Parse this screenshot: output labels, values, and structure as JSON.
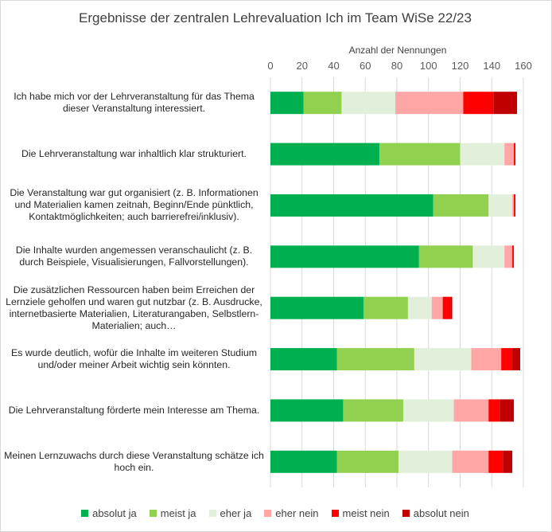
{
  "chart_data": {
    "type": "bar",
    "orientation": "horizontal",
    "stacked": true,
    "title": "Ergebnisse der zentralen Lehrevaluation Ich im Team WiSe 22/23",
    "xlabel": "Anzahl der Nennungen",
    "xlim": [
      0,
      160
    ],
    "xticks": [
      0,
      20,
      40,
      60,
      80,
      100,
      120,
      140,
      160
    ],
    "grid": true,
    "legend_position": "bottom",
    "categories": [
      "Ich habe mich vor der Lehrveranstaltung für das Thema dieser Veranstaltung interessiert.",
      "Die Lehrveranstaltung war inhaltlich klar strukturiert.",
      "Die Veranstaltung war gut organisiert (z. B. Informationen und Materialien kamen zeitnah, Beginn/Ende pünktlich, Kontaktmöglichkeiten; auch barrierefrei/inklusiv).",
      "Die Inhalte wurden angemessen veranschaulicht (z. B. durch Beispiele, Visualisierungen, Fallvorstellungen).",
      "Die zusätzlichen Ressourcen haben beim Erreichen der Lernziele geholfen und waren gut nutzbar (z. B. Ausdrucke, internetbasierte Materialien, Literaturangaben, Selbstlern-Materialien; auch…",
      "Es wurde deutlich, wofür die Inhalte im weiteren Studium und/oder meiner Arbeit wichtig sein könnten.",
      "Die Lehrveranstaltung förderte mein Interesse am Thema.",
      "Meinen Lernzuwachs durch diese Veranstaltung schätze ich hoch ein."
    ],
    "series": [
      {
        "name": "absolut ja",
        "color": "#00b050",
        "values": [
          21,
          69,
          103,
          94,
          59,
          42,
          46,
          42
        ]
      },
      {
        "name": "meist ja",
        "color": "#92d050",
        "values": [
          24,
          51,
          35,
          34,
          28,
          49,
          38,
          39
        ]
      },
      {
        "name": "eher ja",
        "color": "#e2efda",
        "values": [
          34,
          28,
          15,
          20,
          15,
          36,
          32,
          34
        ]
      },
      {
        "name": "eher nein",
        "color": "#ffa7a7",
        "values": [
          43,
          6,
          1,
          5,
          7,
          19,
          22,
          23
        ]
      },
      {
        "name": "meist nein",
        "color": "#ff0000",
        "values": [
          19,
          1,
          1,
          1,
          5,
          7,
          7,
          9
        ]
      },
      {
        "name": "absolut nein",
        "color": "#c00000",
        "values": [
          15,
          0,
          0,
          0,
          1,
          5,
          9,
          6
        ]
      }
    ]
  }
}
